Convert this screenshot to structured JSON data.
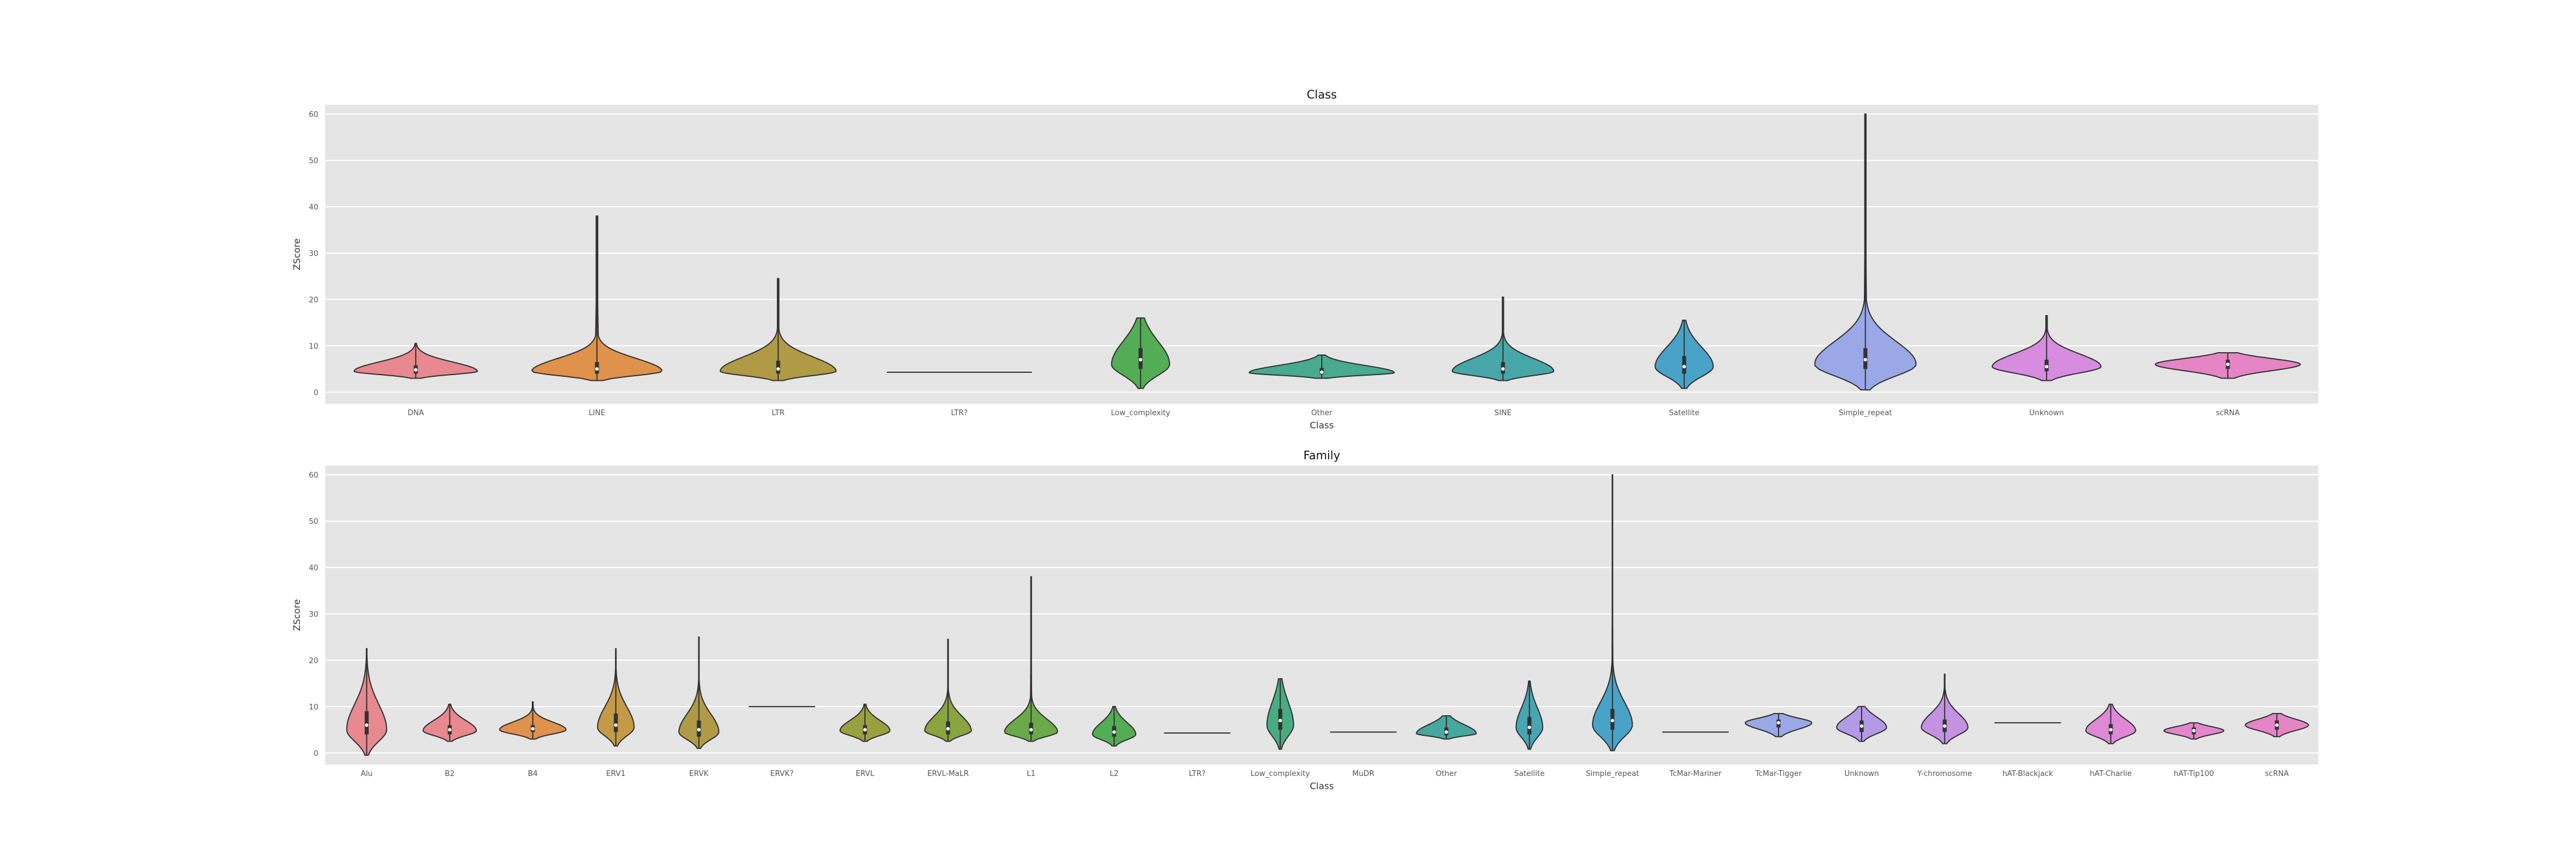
{
  "chart_data": [
    {
      "type": "violin",
      "title": "Class",
      "xlabel": "Class",
      "ylabel": "ZScore",
      "ylim": [
        -2.5,
        62
      ],
      "yticks": [
        0,
        10,
        20,
        30,
        40,
        50,
        60
      ],
      "grid": true,
      "categories": [
        "DNA",
        "LINE",
        "LTR",
        "LTR?",
        "Low_complexity",
        "Other",
        "SINE",
        "Satellite",
        "Simple_repeat",
        "Unknown",
        "scRNA"
      ],
      "series": [
        {
          "category": "DNA",
          "color": "#e8888f",
          "min": 3.0,
          "max": 10.5,
          "q1": 4.0,
          "median": 4.8,
          "q3": 5.8,
          "mode": 4.5,
          "peak": 0.85
        },
        {
          "category": "LINE",
          "color": "#e0924c",
          "min": 2.5,
          "max": 38.0,
          "q1": 4.0,
          "median": 5.0,
          "q3": 6.5,
          "mode": 4.5,
          "peak": 0.9
        },
        {
          "category": "LTR",
          "color": "#b09a46",
          "min": 2.5,
          "max": 24.5,
          "q1": 4.0,
          "median": 5.0,
          "q3": 6.8,
          "mode": 4.5,
          "peak": 0.8
        },
        {
          "category": "LTR?",
          "color": "#9aa040",
          "flat": true,
          "value": 4.3,
          "min": 4.3,
          "max": 4.3,
          "q1": 4.3,
          "median": 4.3,
          "q3": 4.3
        },
        {
          "category": "Low_complexity",
          "color": "#52ad55",
          "min": 0.8,
          "max": 16.0,
          "q1": 5.0,
          "median": 7.0,
          "q3": 9.5,
          "mode": 6.0,
          "peak": 0.4
        },
        {
          "category": "Other",
          "color": "#48aa8e",
          "min": 3.0,
          "max": 8.0,
          "q1": 3.8,
          "median": 4.3,
          "q3": 5.2,
          "mode": 4.2,
          "peak": 1.0
        },
        {
          "category": "SINE",
          "color": "#47a7a8",
          "min": 2.5,
          "max": 20.5,
          "q1": 4.0,
          "median": 5.0,
          "q3": 6.5,
          "mode": 4.5,
          "peak": 0.7
        },
        {
          "category": "Satellite",
          "color": "#49a3c9",
          "min": 0.8,
          "max": 15.5,
          "q1": 4.0,
          "median": 5.5,
          "q3": 7.8,
          "mode": 5.5,
          "peak": 0.4
        },
        {
          "category": "Simple_repeat",
          "color": "#9aa8e8",
          "min": 0.5,
          "max": 60.0,
          "q1": 5.0,
          "median": 7.0,
          "q3": 9.5,
          "mode": 6.0,
          "peak": 0.7
        },
        {
          "category": "Unknown",
          "color": "#d78ce0",
          "min": 2.5,
          "max": 16.5,
          "q1": 4.5,
          "median": 5.5,
          "q3": 7.0,
          "mode": 5.5,
          "peak": 0.75
        },
        {
          "category": "scRNA",
          "color": "#e585c5",
          "min": 3.0,
          "max": 8.5,
          "q1": 5.0,
          "median": 6.0,
          "q3": 7.0,
          "mode": 6.0,
          "peak": 1.0
        }
      ]
    },
    {
      "type": "violin",
      "title": "Family",
      "xlabel": "Class",
      "ylabel": "ZScore",
      "ylim": [
        -2.5,
        62
      ],
      "yticks": [
        0,
        10,
        20,
        30,
        40,
        50,
        60
      ],
      "grid": true,
      "categories": [
        "Alu",
        "B2",
        "B4",
        "ERV1",
        "ERVK",
        "ERVK?",
        "ERVL",
        "ERVL-MaLR",
        "L1",
        "L2",
        "LTR?",
        "Low_complexity",
        "MuDR",
        "Other",
        "Satellite",
        "Simple_repeat",
        "TcMar-Mariner",
        "TcMar-Tigger",
        "Unknown",
        "Y-chromosome",
        "hAT-Blackjack",
        "hAT-Charlie",
        "hAT-Tip100",
        "scRNA"
      ],
      "series": [
        {
          "category": "Alu",
          "color": "#e8888f",
          "min": -0.5,
          "max": 22.5,
          "q1": 4.0,
          "median": 6.0,
          "q3": 9.0,
          "mode": 5.0,
          "peak": 0.6
        },
        {
          "category": "B2",
          "color": "#e8888f",
          "min": 2.5,
          "max": 10.5,
          "q1": 4.0,
          "median": 5.0,
          "q3": 6.0,
          "mode": 4.8,
          "peak": 0.8
        },
        {
          "category": "B4",
          "color": "#e0924c",
          "min": 3.0,
          "max": 11.0,
          "q1": 4.5,
          "median": 5.2,
          "q3": 6.0,
          "mode": 5.0,
          "peak": 1.0
        },
        {
          "category": "ERV1",
          "color": "#c49a46",
          "min": 1.5,
          "max": 22.5,
          "q1": 4.5,
          "median": 6.0,
          "q3": 8.5,
          "mode": 5.5,
          "peak": 0.55
        },
        {
          "category": "ERVK",
          "color": "#b09a46",
          "min": 1.0,
          "max": 25.0,
          "q1": 3.5,
          "median": 5.0,
          "q3": 7.0,
          "mode": 4.5,
          "peak": 0.6
        },
        {
          "category": "ERVK?",
          "color": "#a89c42",
          "flat": true,
          "value": 10.0,
          "min": 10.0,
          "max": 10.0,
          "q1": 10.0,
          "median": 10.0,
          "q3": 10.0
        },
        {
          "category": "ERVL",
          "color": "#9aa040",
          "min": 2.5,
          "max": 10.5,
          "q1": 4.0,
          "median": 5.0,
          "q3": 6.0,
          "mode": 4.8,
          "peak": 0.75
        },
        {
          "category": "ERVL-MaLR",
          "color": "#8aa440",
          "min": 2.5,
          "max": 24.5,
          "q1": 4.0,
          "median": 5.2,
          "q3": 6.8,
          "mode": 4.8,
          "peak": 0.7
        },
        {
          "category": "L1",
          "color": "#6aaa48",
          "min": 2.5,
          "max": 38.0,
          "q1": 4.0,
          "median": 5.0,
          "q3": 6.5,
          "mode": 4.5,
          "peak": 0.8
        },
        {
          "category": "L2",
          "color": "#52ad55",
          "min": 1.5,
          "max": 10.0,
          "q1": 3.5,
          "median": 4.5,
          "q3": 5.8,
          "mode": 4.0,
          "peak": 0.65
        },
        {
          "category": "LTR?",
          "color": "#4eae6e",
          "flat": true,
          "value": 4.3,
          "min": 4.3,
          "max": 4.3,
          "q1": 4.3,
          "median": 4.3,
          "q3": 4.3
        },
        {
          "category": "Low_complexity",
          "color": "#48ac82",
          "min": 0.8,
          "max": 16.0,
          "q1": 5.0,
          "median": 7.0,
          "q3": 9.5,
          "mode": 6.0,
          "peak": 0.4
        },
        {
          "category": "MuDR",
          "color": "#48aa8e",
          "flat": true,
          "value": 4.5,
          "min": 4.5,
          "max": 4.5,
          "q1": 4.5,
          "median": 4.5,
          "q3": 4.5
        },
        {
          "category": "Other",
          "color": "#47a8a0",
          "min": 3.0,
          "max": 8.0,
          "q1": 3.8,
          "median": 4.5,
          "q3": 5.5,
          "mode": 4.2,
          "peak": 0.9
        },
        {
          "category": "Satellite",
          "color": "#47a6b2",
          "min": 0.8,
          "max": 15.5,
          "q1": 4.0,
          "median": 5.5,
          "q3": 7.8,
          "mode": 5.5,
          "peak": 0.4
        },
        {
          "category": "Simple_repeat",
          "color": "#49a3c9",
          "min": 0.5,
          "max": 60.0,
          "q1": 5.0,
          "median": 7.0,
          "q3": 9.5,
          "mode": 6.0,
          "peak": 0.6
        },
        {
          "category": "TcMar-Mariner",
          "color": "#6fa6e0",
          "flat": true,
          "value": 4.5,
          "min": 4.5,
          "max": 4.5,
          "q1": 4.5,
          "median": 4.5,
          "q3": 4.5
        },
        {
          "category": "TcMar-Tigger",
          "color": "#9aa8e8",
          "min": 3.5,
          "max": 8.5,
          "q1": 5.5,
          "median": 6.5,
          "q3": 7.2,
          "mode": 6.5,
          "peak": 1.0
        },
        {
          "category": "Unknown",
          "color": "#b39ae6",
          "min": 2.5,
          "max": 10.0,
          "q1": 4.5,
          "median": 5.8,
          "q3": 7.0,
          "mode": 5.5,
          "peak": 0.75
        },
        {
          "category": "Y-chromosome",
          "color": "#c592e3",
          "min": 2.0,
          "max": 17.0,
          "q1": 4.5,
          "median": 5.8,
          "q3": 7.2,
          "mode": 5.5,
          "peak": 0.7
        },
        {
          "category": "hAT-Blackjack",
          "color": "#d78ce0",
          "flat": true,
          "value": 6.5,
          "min": 6.5,
          "max": 6.5,
          "q1": 6.5,
          "median": 6.5,
          "q3": 6.5
        },
        {
          "category": "hAT-Charlie",
          "color": "#de88d6",
          "min": 2.0,
          "max": 10.5,
          "q1": 4.0,
          "median": 5.0,
          "q3": 6.2,
          "mode": 4.8,
          "peak": 0.75
        },
        {
          "category": "hAT-Tip100",
          "color": "#e287cd",
          "min": 3.0,
          "max": 6.5,
          "q1": 4.0,
          "median": 4.8,
          "q3": 5.5,
          "mode": 4.8,
          "peak": 0.9
        },
        {
          "category": "scRNA",
          "color": "#e585c5",
          "min": 3.5,
          "max": 8.5,
          "q1": 5.0,
          "median": 6.0,
          "q3": 7.0,
          "mode": 6.0,
          "peak": 0.95
        }
      ]
    }
  ]
}
